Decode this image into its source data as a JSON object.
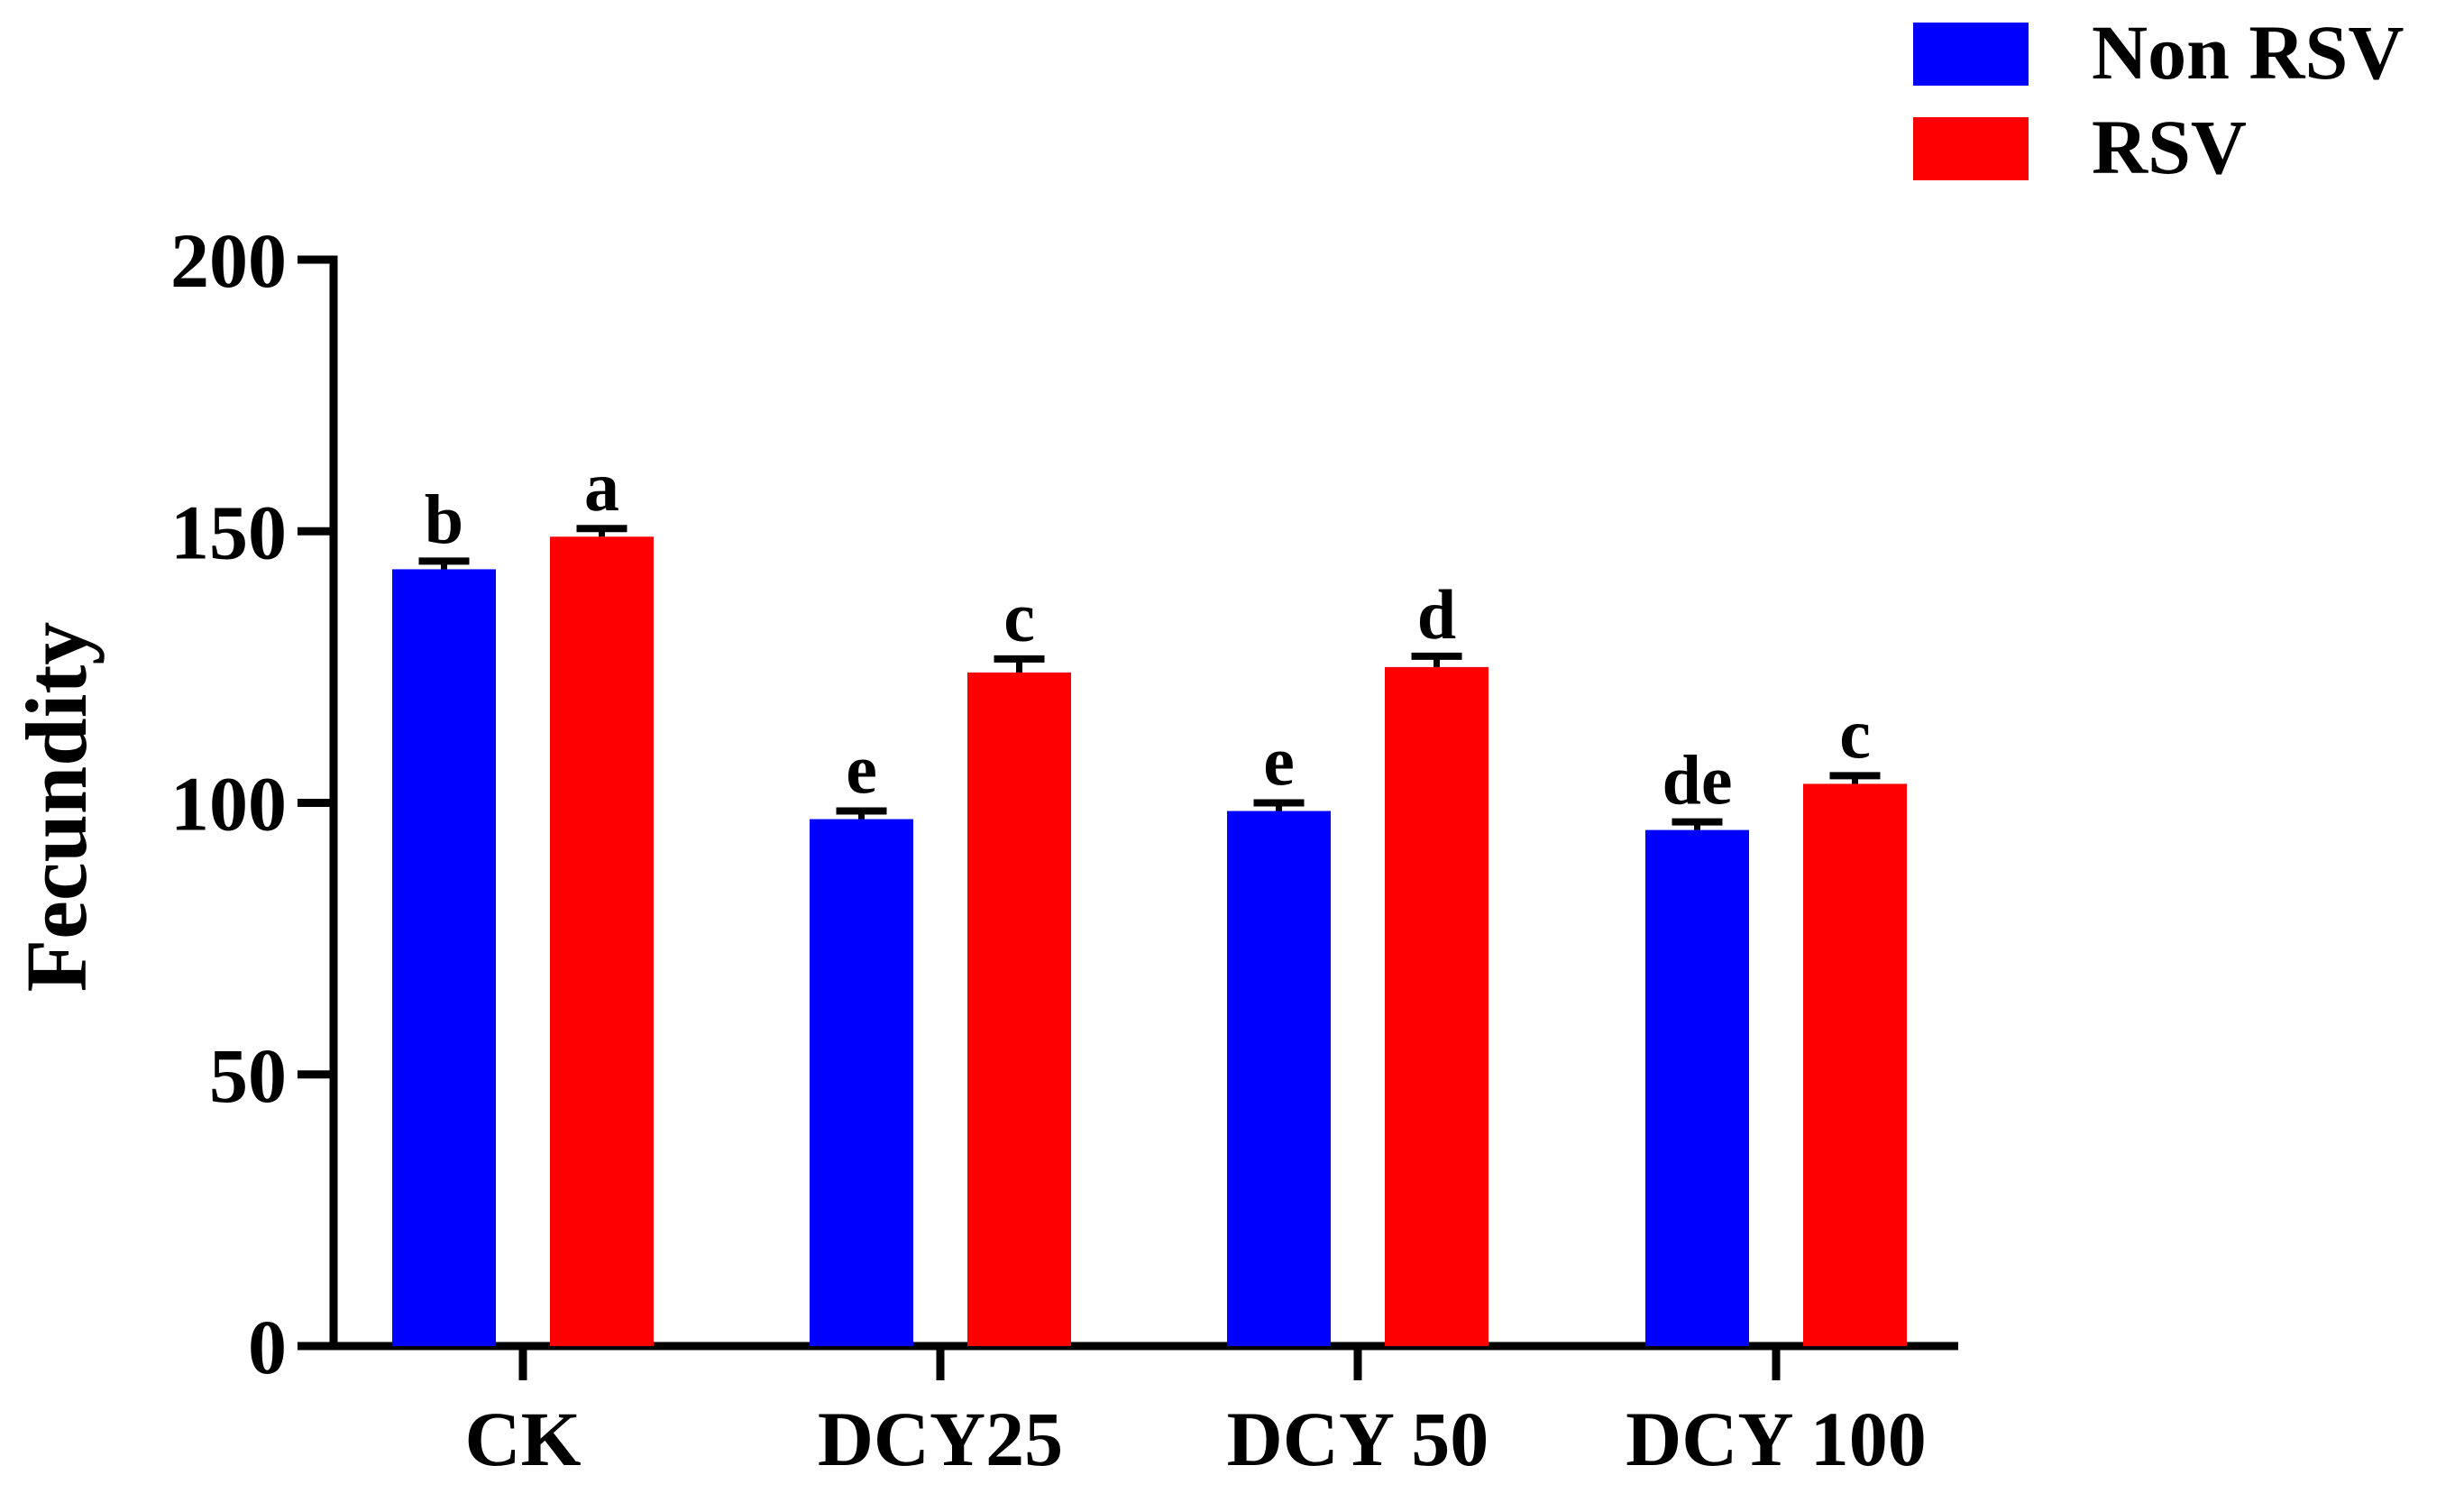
{
  "chart_data": {
    "type": "bar",
    "title": "",
    "xlabel": "",
    "ylabel": "Fecundity",
    "ylim": [
      0,
      200
    ],
    "yticks": [
      0,
      50,
      100,
      150,
      200
    ],
    "categories": [
      "CK",
      "DCY25",
      "DCY 50",
      "DCY 100"
    ],
    "series": [
      {
        "name": "Non RSV",
        "color": "#0000ff",
        "values": [
          143,
          97,
          98.5,
          95
        ],
        "errors": [
          1.5,
          1.5,
          1.5,
          1.5
        ],
        "letters": [
          "b",
          "e",
          "e",
          "de"
        ]
      },
      {
        "name": "RSV",
        "color": "#ff0000",
        "values": [
          149,
          124,
          125,
          103.5
        ],
        "errors": [
          1.5,
          2.5,
          2,
          1.5
        ],
        "letters": [
          "a",
          "c",
          "d",
          "c"
        ]
      }
    ],
    "legend_position": "top-right",
    "grid": false
  }
}
